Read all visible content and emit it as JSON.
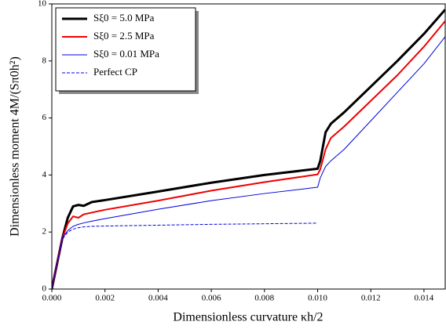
{
  "chart_data": {
    "type": "line",
    "xlabel": "Dimensionless curvature κh/2",
    "ylabel": "Dimensionless moment 4M/(Sπ0h²)",
    "x": [
      0,
      0.0002,
      0.0004,
      0.0006,
      0.0008,
      0.001,
      0.0012,
      0.0015,
      0.002,
      0.004,
      0.006,
      0.008,
      0.01,
      0.0101,
      0.0103,
      0.0105,
      0.011,
      0.012,
      0.013,
      0.014,
      0.0148
    ],
    "series": [
      {
        "name": "Sξ0 = 5.0 MPa",
        "color": "#000000",
        "linewidth": 3,
        "linestyle": "solid",
        "values": [
          0,
          0.9,
          1.8,
          2.5,
          2.9,
          2.95,
          2.92,
          3.05,
          3.12,
          3.42,
          3.73,
          4.0,
          4.22,
          4.5,
          5.5,
          5.8,
          6.2,
          7.1,
          8.0,
          8.95,
          9.8
        ]
      },
      {
        "name": "Sξ0 = 2.5 MPa",
        "color": "#ee0000",
        "linewidth": 2,
        "linestyle": "solid",
        "values": [
          0,
          0.9,
          1.8,
          2.3,
          2.55,
          2.5,
          2.62,
          2.68,
          2.78,
          3.1,
          3.45,
          3.75,
          4.02,
          4.2,
          4.9,
          5.3,
          5.7,
          6.6,
          7.5,
          8.5,
          9.4
        ]
      },
      {
        "name": "Sξ0 = 0.01 MPa",
        "color": "#0000dd",
        "linewidth": 1,
        "linestyle": "solid",
        "values": [
          0,
          0.9,
          1.8,
          2.05,
          2.2,
          2.27,
          2.32,
          2.38,
          2.47,
          2.8,
          3.1,
          3.35,
          3.57,
          3.9,
          4.3,
          4.5,
          4.9,
          5.9,
          6.9,
          7.9,
          8.85
        ]
      },
      {
        "name": "Perfect CP",
        "color": "#0000dd",
        "linewidth": 1,
        "linestyle": "dashed",
        "values": [
          0,
          0.9,
          1.75,
          2.0,
          2.1,
          2.15,
          2.18,
          2.2,
          2.21,
          2.24,
          2.27,
          2.29,
          2.31,
          null,
          null,
          null,
          null,
          null,
          null,
          null,
          null
        ]
      }
    ],
    "xlim": [
      0,
      0.0148
    ],
    "ylim": [
      0,
      10
    ],
    "xticks": [
      {
        "value": 0,
        "label": "0.000"
      },
      {
        "value": 0.002,
        "label": "0.002"
      },
      {
        "value": 0.004,
        "label": "0.004"
      },
      {
        "value": 0.006,
        "label": "0.006"
      },
      {
        "value": 0.008,
        "label": "0.008"
      },
      {
        "value": 0.01,
        "label": "0.010"
      },
      {
        "value": 0.012,
        "label": "0.012"
      },
      {
        "value": 0.014,
        "label": "0.014"
      }
    ],
    "yticks": [
      0,
      2,
      4,
      6,
      8,
      10
    ],
    "legend": "upper left",
    "grid": false
  }
}
